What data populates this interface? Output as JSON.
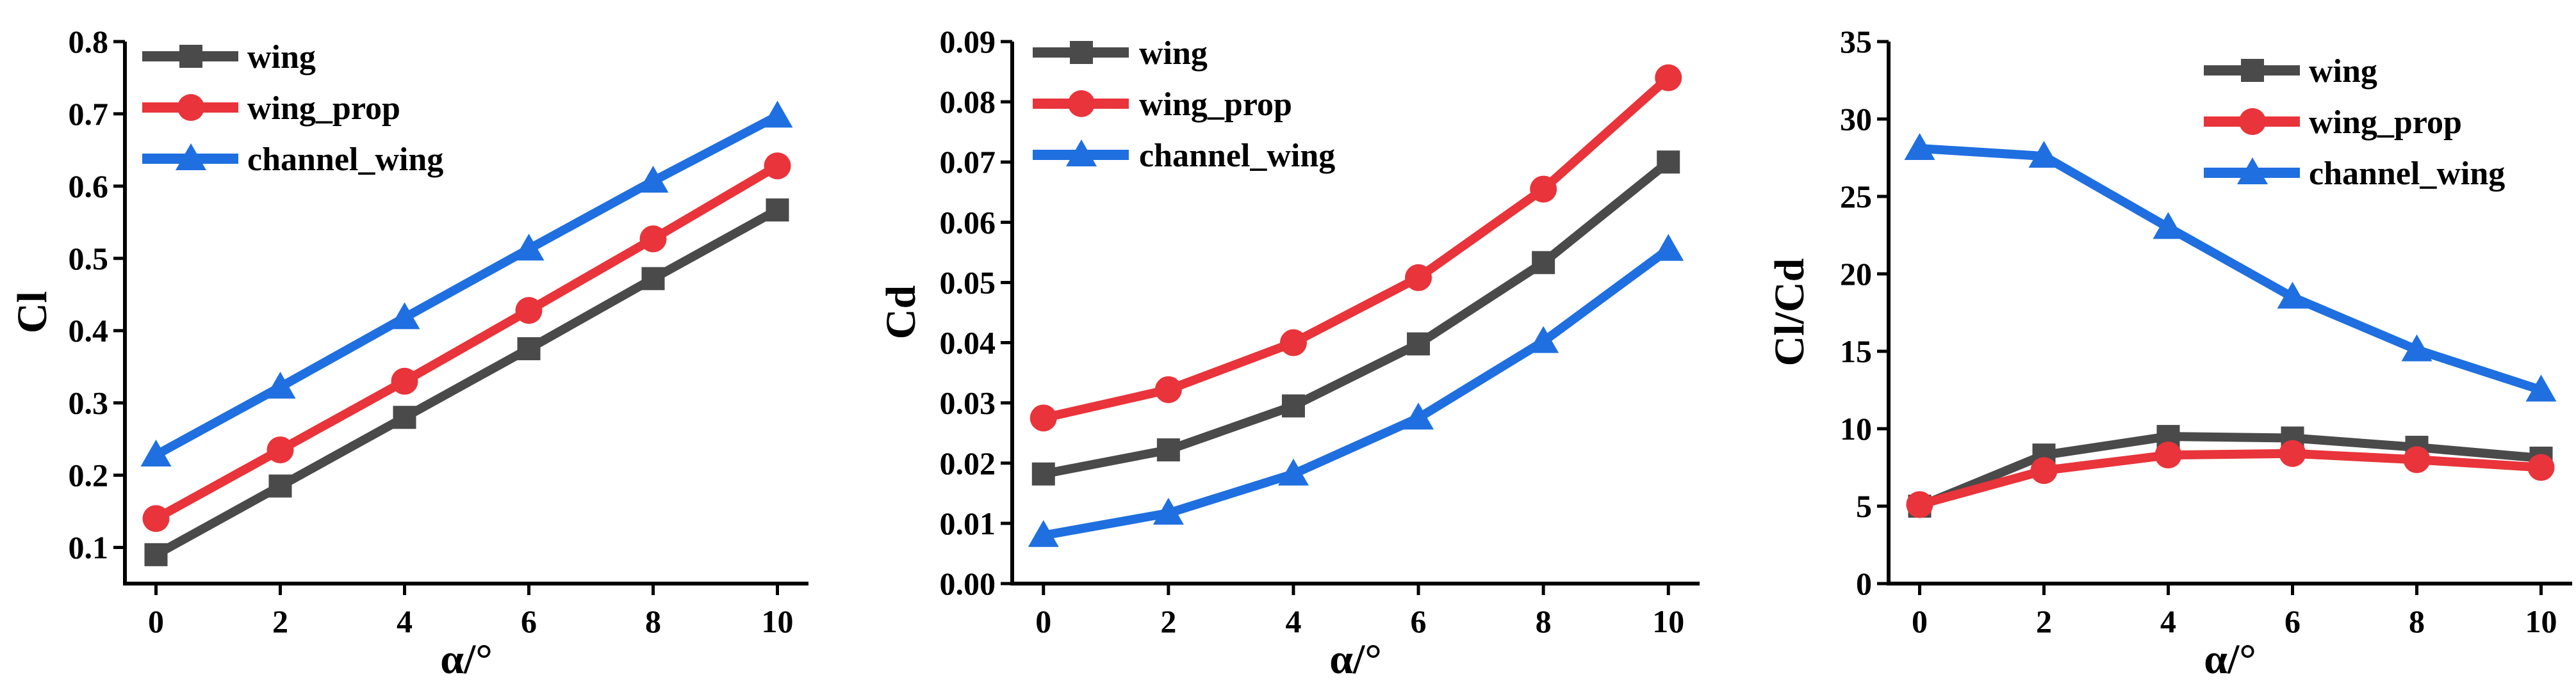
{
  "colors": {
    "wing": "#4a4a4a",
    "wing_prop": "#e8343a",
    "channel_wing": "#1f6fe0"
  },
  "chart_data": [
    {
      "type": "line",
      "title": "",
      "xlabel": "α/°",
      "ylabel": "Cl",
      "x": [
        0,
        2,
        4,
        6,
        8,
        10
      ],
      "xticks": [
        "0",
        "2",
        "4",
        "6",
        "8",
        "10"
      ],
      "xlim": [
        -0.5,
        10.5
      ],
      "yticks": [
        "0.1",
        "0.2",
        "0.3",
        "0.4",
        "0.5",
        "0.6",
        "0.7",
        "0.8"
      ],
      "ylim": [
        0.05,
        0.8
      ],
      "legend_position": "top-left",
      "series": [
        {
          "name": "wing",
          "marker": "square",
          "values": [
            0.09,
            0.185,
            0.28,
            0.375,
            0.472,
            0.567
          ]
        },
        {
          "name": "wing_prop",
          "marker": "circle",
          "values": [
            0.14,
            0.235,
            0.33,
            0.428,
            0.527,
            0.628
          ]
        },
        {
          "name": "channel_wing",
          "marker": "triangle",
          "values": [
            0.228,
            0.322,
            0.418,
            0.513,
            0.607,
            0.697
          ]
        }
      ]
    },
    {
      "type": "line",
      "title": "",
      "xlabel": "α/°",
      "ylabel": "Cd",
      "x": [
        0,
        2,
        4,
        6,
        8,
        10
      ],
      "xticks": [
        "0",
        "2",
        "4",
        "6",
        "8",
        "10"
      ],
      "xlim": [
        -0.5,
        10.5
      ],
      "yticks": [
        "0.00",
        "0.01",
        "0.02",
        "0.03",
        "0.04",
        "0.05",
        "0.06",
        "0.07",
        "0.08",
        "0.09"
      ],
      "ylim": [
        0.0,
        0.09
      ],
      "legend_position": "top-left",
      "series": [
        {
          "name": "wing",
          "marker": "square",
          "values": [
            0.0182,
            0.0222,
            0.0295,
            0.0398,
            0.0533,
            0.07
          ]
        },
        {
          "name": "wing_prop",
          "marker": "circle",
          "values": [
            0.0275,
            0.0322,
            0.04,
            0.0508,
            0.0655,
            0.084
          ]
        },
        {
          "name": "channel_wing",
          "marker": "triangle",
          "values": [
            0.008,
            0.0117,
            0.0182,
            0.0275,
            0.0402,
            0.0555
          ]
        }
      ]
    },
    {
      "type": "line",
      "title": "",
      "xlabel": "α/°",
      "ylabel": "Cl/Cd",
      "x": [
        0,
        2,
        4,
        6,
        8,
        10
      ],
      "xticks": [
        "0",
        "2",
        "4",
        "6",
        "8",
        "10"
      ],
      "xlim": [
        -0.5,
        10.5
      ],
      "yticks": [
        "0",
        "5",
        "10",
        "15",
        "20",
        "25",
        "30",
        "35"
      ],
      "ylim": [
        0,
        35
      ],
      "legend_position": "top-right",
      "series": [
        {
          "name": "wing",
          "marker": "square",
          "values": [
            5.0,
            8.3,
            9.5,
            9.4,
            8.8,
            8.1
          ]
        },
        {
          "name": "wing_prop",
          "marker": "circle",
          "values": [
            5.1,
            7.3,
            8.3,
            8.4,
            8.0,
            7.5
          ]
        },
        {
          "name": "channel_wing",
          "marker": "triangle",
          "values": [
            28.1,
            27.6,
            23.0,
            18.5,
            15.1,
            12.5
          ]
        }
      ]
    }
  ]
}
